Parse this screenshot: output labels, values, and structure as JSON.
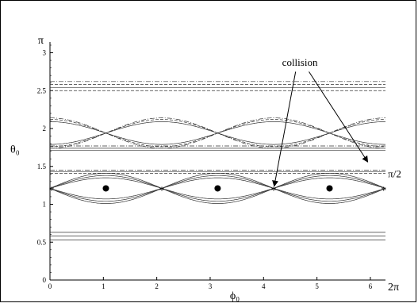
{
  "chart_data": {
    "type": "line",
    "title": "",
    "xlabel": "ϕ₀",
    "ylabel": "θ₀",
    "xlim": [
      0,
      6.2832
    ],
    "ylim": [
      0,
      3.1416
    ],
    "x_ticks": [
      {
        "value": 0,
        "label": "0"
      },
      {
        "value": 1,
        "label": "1"
      },
      {
        "value": 2,
        "label": "2"
      },
      {
        "value": 3,
        "label": "3"
      },
      {
        "value": 4,
        "label": "4"
      },
      {
        "value": 5,
        "label": "5"
      },
      {
        "value": 6,
        "label": "6"
      }
    ],
    "x_end_label": "2π",
    "y_ticks": [
      {
        "value": 0,
        "label": "0"
      },
      {
        "value": 0.5,
        "label": "0.5"
      },
      {
        "value": 1,
        "label": "1"
      },
      {
        "value": 1.5,
        "label": "1.5"
      },
      {
        "value": 2,
        "label": "2"
      },
      {
        "value": 2.5,
        "label": "2.5"
      },
      {
        "value": 3,
        "label": "3"
      }
    ],
    "y_end_label": "π",
    "grid": false,
    "legend": "none",
    "straight_curves": [
      {
        "theta": 0.53,
        "style": "solid"
      },
      {
        "theta": 0.58,
        "style": "solid"
      },
      {
        "theta": 0.63,
        "style": "solid"
      },
      {
        "theta": 1.71,
        "style": "solid"
      },
      {
        "theta": 1.74,
        "style": "solid"
      },
      {
        "theta": 1.77,
        "style": "dashdot"
      },
      {
        "theta": 1.43,
        "style": "solid"
      },
      {
        "theta": 1.41,
        "style": "dashed"
      },
      {
        "theta": 1.45,
        "style": "dashdot"
      },
      {
        "theta": 2.5,
        "style": "dashed"
      },
      {
        "theta": 2.54,
        "style": "solid"
      },
      {
        "theta": 2.58,
        "style": "dashed"
      },
      {
        "theta": 2.62,
        "style": "dashdot"
      }
    ],
    "separatrix_band": {
      "center": 1.21,
      "amp": 0.2,
      "period": 2.094,
      "phase": 1.047
    },
    "upper_band": {
      "center": 1.94,
      "amp": 0.2,
      "period": 2.094,
      "phase": 0
    },
    "hyperbolic_points": [
      {
        "phi": 1.047,
        "theta": 1.21
      },
      {
        "phi": 3.14,
        "theta": 1.21
      },
      {
        "phi": 5.236,
        "theta": 1.21
      }
    ],
    "elliptic_points": [
      {
        "phi": 0.03,
        "theta": 1.2
      },
      {
        "phi": 2.094,
        "theta": 1.2
      },
      {
        "phi": 4.189,
        "theta": 1.2
      },
      {
        "phi": 6.25,
        "theta": 1.2
      }
    ],
    "annotations": [
      {
        "text": "collision",
        "phi": 4.68,
        "theta": 2.83
      },
      {
        "text": "π/2",
        "phi": 6.65,
        "theta": 1.4
      }
    ]
  }
}
